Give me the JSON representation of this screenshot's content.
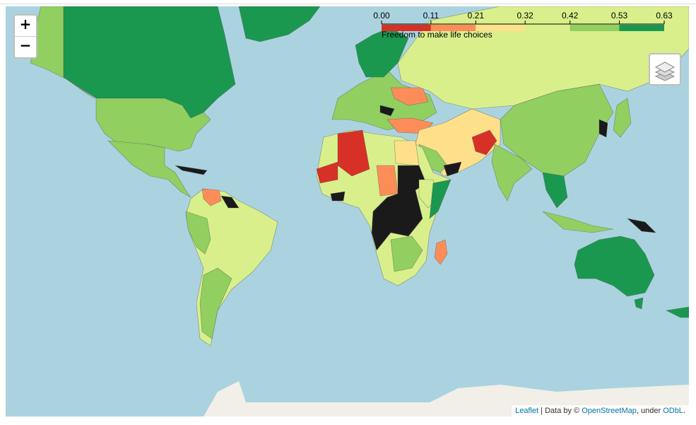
{
  "legend": {
    "caption": "Freedom to make life choices",
    "ticks": [
      {
        "value": 0,
        "label": "0.00"
      },
      {
        "value": 0.11,
        "label": "0.11"
      },
      {
        "value": 0.21,
        "label": "0.21"
      },
      {
        "value": 0.32,
        "label": "0.32"
      },
      {
        "value": 0.42,
        "label": "0.42"
      },
      {
        "value": 0.53,
        "label": "0.53"
      },
      {
        "value": 0.63,
        "label": "0.63"
      }
    ],
    "colors": [
      "#d73027",
      "#fc8d59",
      "#fee08b",
      "#d9ef8b",
      "#91cf60",
      "#1a9850"
    ]
  },
  "zoom": {
    "in": "+",
    "out": "−"
  },
  "attribution": {
    "leaflet": "Leaflet",
    "text1": " | Data by © ",
    "osm": "OpenStreetMap",
    "text2": ", under ",
    "odbl": "ODbL",
    "end": "."
  }
}
